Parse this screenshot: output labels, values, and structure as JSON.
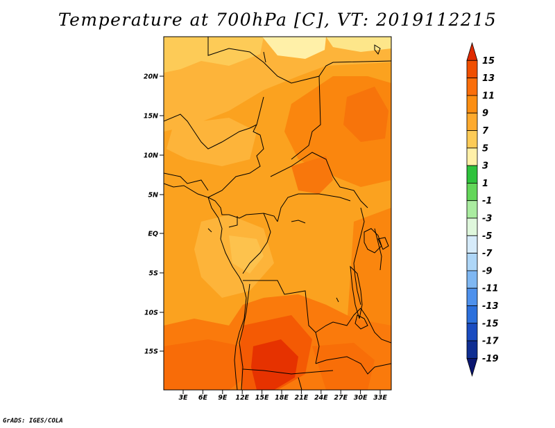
{
  "title": "Temperature at 700hPa [C], VT: 2019112215",
  "credit": "GrADS: IGES/COLA",
  "map": {
    "lat_ticks": [
      "20N",
      "15N",
      "10N",
      "5N",
      "EQ",
      "5S",
      "10S",
      "15S"
    ],
    "lon_ticks": [
      "3E",
      "6E",
      "9E",
      "12E",
      "15E",
      "18E",
      "21E",
      "24E",
      "27E",
      "30E",
      "33E"
    ]
  },
  "colorbar": {
    "labels": [
      "15",
      "13",
      "11",
      "9",
      "7",
      "5",
      "3",
      "1",
      "-1",
      "-3",
      "-5",
      "-7",
      "-9",
      "-11",
      "-13",
      "-15",
      "-17",
      "-19"
    ],
    "colors": [
      "#e02a00",
      "#f04f00",
      "#fa6e0a",
      "#fb8e12",
      "#fdaa2e",
      "#fdcb57",
      "#fff0a8",
      "#2ec23c",
      "#63d659",
      "#aaeca0",
      "#dff7dc",
      "#d6ebfa",
      "#aed6f7",
      "#7fb7f2",
      "#4e91ec",
      "#2c70dc",
      "#1a4cc0",
      "#0f2e92",
      "#0a1670"
    ]
  }
}
